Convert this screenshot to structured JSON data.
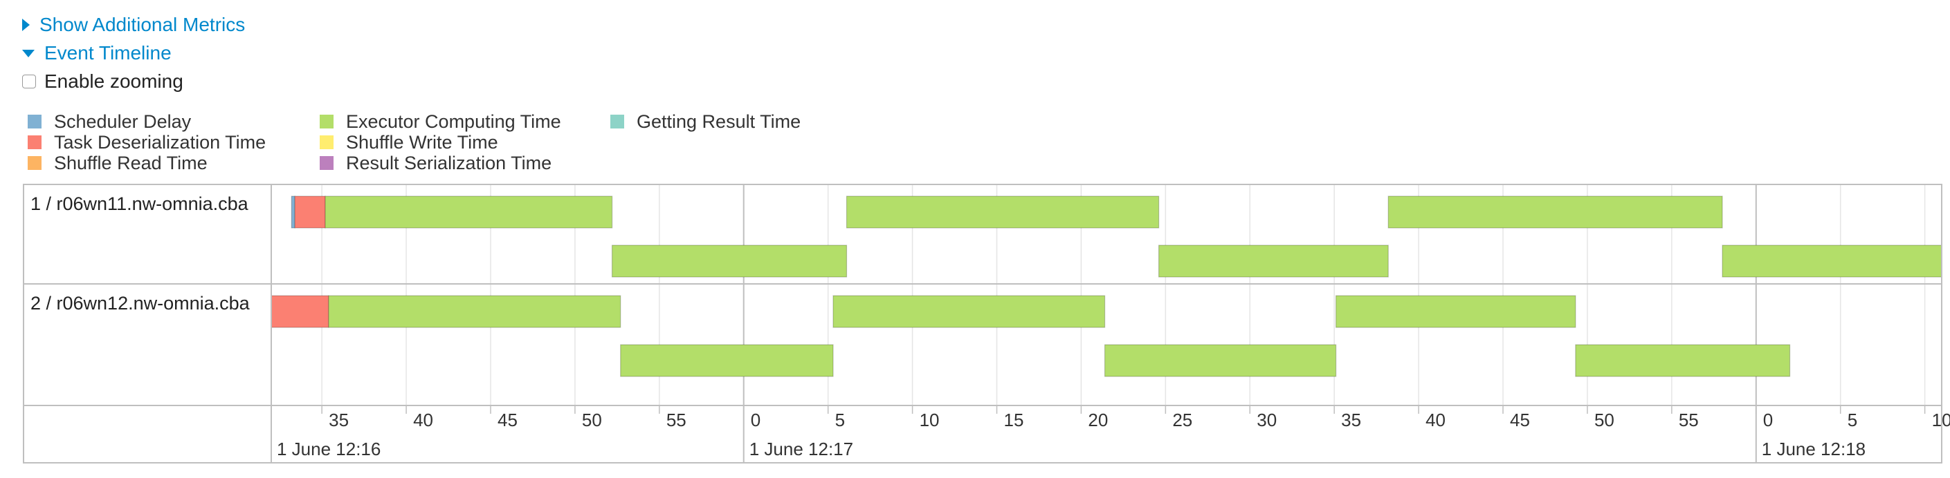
{
  "sections": {
    "additional_metrics": "Show Additional Metrics",
    "event_timeline": "Event Timeline"
  },
  "zoom": {
    "label": "Enable zooming",
    "checked": false
  },
  "legend": [
    {
      "key": "scheduler_delay",
      "label": "Scheduler Delay",
      "color": "#80b1d3"
    },
    {
      "key": "task_deserialization",
      "label": "Task Deserialization Time",
      "color": "#fb8072"
    },
    {
      "key": "shuffle_read",
      "label": "Shuffle Read Time",
      "color": "#fdb462"
    },
    {
      "key": "executor_computing",
      "label": "Executor Computing Time",
      "color": "#b3de69"
    },
    {
      "key": "shuffle_write",
      "label": "Shuffle Write Time",
      "color": "#ffed6f"
    },
    {
      "key": "result_serialization",
      "label": "Result Serialization Time",
      "color": "#bc80bd"
    },
    {
      "key": "getting_result",
      "label": "Getting Result Time",
      "color": "#8dd3c7"
    }
  ],
  "executors": [
    {
      "label": "1 / r06wn11.nw-omnia.cba"
    },
    {
      "label": "2 / r06wn12.nw-omnia.cba"
    }
  ],
  "chart_data": {
    "type": "timeline",
    "x_unit": "seconds",
    "x_range": [
      "12:16:32.0",
      "12:18:11.0"
    ],
    "tick_labels": [
      "35",
      "40",
      "45",
      "50",
      "55",
      "0",
      "5",
      "10",
      "15",
      "20",
      "25",
      "30",
      "35",
      "40",
      "45",
      "50",
      "55",
      "0",
      "5",
      "10"
    ],
    "minute_labels": [
      "1 June 12:16",
      "1 June 12:17",
      "1 June 12:18"
    ],
    "tasks": [
      {
        "executor": 0,
        "lane": 0,
        "start": "12:16:33.2",
        "end": "12:16:52.2",
        "segments": [
          {
            "phase": "scheduler_delay",
            "duration": 0.2
          },
          {
            "phase": "task_deserialization",
            "duration": 1.8
          },
          {
            "phase": "executor_computing",
            "duration": 17.0
          }
        ]
      },
      {
        "executor": 0,
        "lane": 1,
        "start": "12:16:52.2",
        "end": "12:17:06.1",
        "segments": [
          {
            "phase": "executor_computing",
            "duration": 13.9
          }
        ]
      },
      {
        "executor": 0,
        "lane": 0,
        "start": "12:17:06.1",
        "end": "12:17:24.6",
        "segments": [
          {
            "phase": "executor_computing",
            "duration": 18.5
          }
        ]
      },
      {
        "executor": 0,
        "lane": 1,
        "start": "12:17:24.6",
        "end": "12:17:38.2",
        "segments": [
          {
            "phase": "executor_computing",
            "duration": 13.6
          }
        ]
      },
      {
        "executor": 0,
        "lane": 0,
        "start": "12:17:38.2",
        "end": "12:17:58.0",
        "segments": [
          {
            "phase": "executor_computing",
            "duration": 19.8
          }
        ]
      },
      {
        "executor": 0,
        "lane": 1,
        "start": "12:17:58.0",
        "end": "12:18:11.0",
        "segments": [
          {
            "phase": "executor_computing",
            "duration": 13.0
          }
        ]
      },
      {
        "executor": 1,
        "lane": 0,
        "start": "12:16:32.0",
        "end": "12:16:52.7",
        "segments": [
          {
            "phase": "task_deserialization",
            "duration": 3.4
          },
          {
            "phase": "executor_computing",
            "duration": 17.3
          }
        ]
      },
      {
        "executor": 1,
        "lane": 1,
        "start": "12:16:52.7",
        "end": "12:17:05.3",
        "segments": [
          {
            "phase": "executor_computing",
            "duration": 12.6
          }
        ]
      },
      {
        "executor": 1,
        "lane": 0,
        "start": "12:17:05.3",
        "end": "12:17:21.4",
        "segments": [
          {
            "phase": "executor_computing",
            "duration": 16.1
          }
        ]
      },
      {
        "executor": 1,
        "lane": 1,
        "start": "12:17:21.4",
        "end": "12:17:35.1",
        "segments": [
          {
            "phase": "executor_computing",
            "duration": 13.7
          }
        ]
      },
      {
        "executor": 1,
        "lane": 0,
        "start": "12:17:35.1",
        "end": "12:17:49.3",
        "segments": [
          {
            "phase": "executor_computing",
            "duration": 14.2
          }
        ]
      },
      {
        "executor": 1,
        "lane": 1,
        "start": "12:17:49.3",
        "end": "12:18:02.0",
        "segments": [
          {
            "phase": "executor_computing",
            "duration": 12.7
          }
        ]
      }
    ]
  }
}
